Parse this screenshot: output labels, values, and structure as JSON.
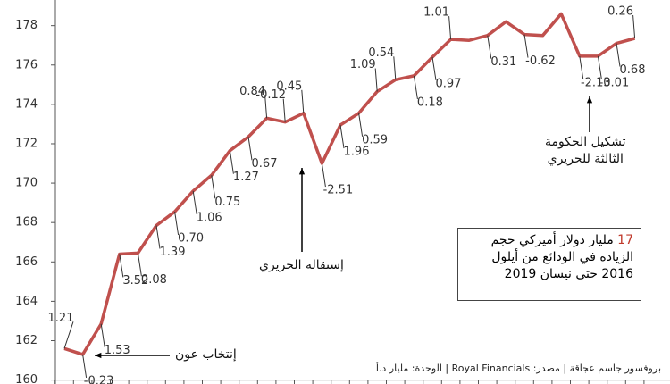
{
  "chart_data": {
    "type": "line",
    "color": "#c0504d",
    "values": [
      161.6,
      161.3,
      162.85,
      166.4,
      166.45,
      167.85,
      168.55,
      169.6,
      170.4,
      171.65,
      172.35,
      173.3,
      173.1,
      173.55,
      171.0,
      172.95,
      173.55,
      174.65,
      175.25,
      175.45,
      176.4,
      177.3,
      177.25,
      177.5,
      178.2,
      177.55,
      177.5,
      178.6,
      176.45,
      176.45,
      177.1,
      177.35
    ],
    "point_labels": [
      "1.21",
      "-0.23",
      "1.53",
      "3.52",
      "0.08",
      "1.39",
      "0.70",
      "1.06",
      "0.75",
      "1.27",
      "0.67",
      "0.84",
      "-0.12",
      "0.45",
      "-2.51",
      "1.96",
      "0.59",
      "1.09",
      "0.54",
      "0.18",
      "0.97",
      "1.01",
      null,
      "0.31",
      null,
      "-0.62",
      null,
      null,
      "-2.13",
      "-0.01",
      "0.68",
      "0.26"
    ],
    "ylim": [
      159.8,
      179.3
    ],
    "yticks": [
      160,
      162,
      164,
      166,
      168,
      170,
      172,
      174,
      176,
      178
    ],
    "annotations": [
      "إنتخاب عون",
      "إستقالة الحريري",
      "تشكيل الحكومة\nالثالثة للحريري"
    ],
    "box": {
      "highlight": "17",
      "lines": [
        "مليار دولار أميركي حجم",
        "الزيادة في الودائع من أيلول",
        "2016 حتى نيسان 2019"
      ]
    },
    "source": "بروفسور جاسم عجاقة | مصدر: Royal Financials | الوحدة: مليار د.أ"
  }
}
